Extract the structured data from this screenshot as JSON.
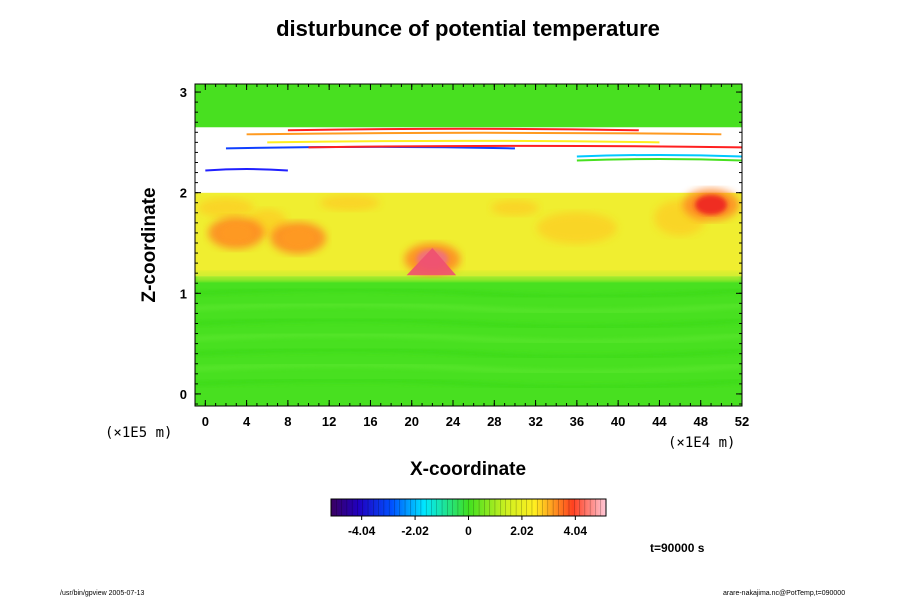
{
  "chart_data": {
    "type": "heatmap",
    "title": "disturbunce of potential temperature",
    "xlabel": "X-coordinate",
    "ylabel": "Z-coordinate",
    "x_unit": "(×1E4 m)",
    "y_unit": "(×1E5 m)",
    "xlim": [
      -1,
      52
    ],
    "ylim": [
      -0.12,
      3.08
    ],
    "x_ticks": [
      "0",
      "4",
      "8",
      "12",
      "16",
      "20",
      "24",
      "28",
      "32",
      "36",
      "40",
      "44",
      "48",
      "52"
    ],
    "y_ticks": [
      "0",
      "1",
      "2",
      "3"
    ],
    "colorbar": {
      "range": [
        -5.2,
        5.2
      ],
      "tick_labels": [
        "-4.04",
        "-2.02",
        "0",
        "2.02",
        "4.04"
      ],
      "tick_values": [
        -4.04,
        -2.02,
        0,
        2.02,
        4.04
      ]
    },
    "regions": [
      {
        "z": [
          -0.12,
          1.17
        ],
        "level": 0.6
      },
      {
        "z": [
          1.17,
          2.0
        ],
        "level": 2.9
      },
      {
        "z": [
          2.0,
          2.65
        ],
        "level": null
      },
      {
        "z": [
          2.65,
          3.08
        ],
        "level": 0.5
      }
    ],
    "features": [
      {
        "x": 22,
        "z": 1.34,
        "value": 5.0
      },
      {
        "x": 3,
        "z": 1.6,
        "value": 4.0
      },
      {
        "x": 9,
        "z": 1.55,
        "value": 4.0
      },
      {
        "x": 49,
        "z": 1.88,
        "value": 4.2
      }
    ],
    "grid": false
  },
  "annotations": {
    "time": "t=90000 s",
    "footer_left": "/usr/bin/gpview 2005-07-13",
    "footer_right": "arare-nakajima.nc@PotTemp,t=090000"
  },
  "colors": {
    "green": "#48e020",
    "yellow": "#f0ee30",
    "red": "#ee2222",
    "white_gap": "#ffffff"
  }
}
